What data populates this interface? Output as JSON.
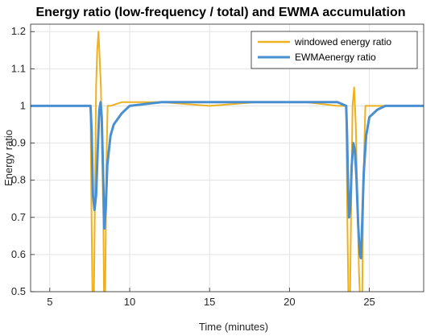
{
  "chart_data": {
    "type": "line",
    "title": "Energy ratio (low-frequency / total) and EWMA accumulation",
    "xlabel": "Time (minutes)",
    "ylabel": "Energy ratio",
    "xlim": [
      3.8,
      28.4
    ],
    "ylim": [
      0.5,
      1.22
    ],
    "xticks": [
      5,
      10,
      15,
      20,
      25
    ],
    "yticks": [
      0.5,
      0.6,
      0.7,
      0.8,
      0.9,
      1,
      1.1,
      1.2
    ],
    "grid": true,
    "legend_position": "top-right",
    "series": [
      {
        "name": "windowed energy ratio",
        "color": "#EDB120",
        "x": [
          3.8,
          7.0,
          7.4,
          7.55,
          7.6,
          7.68,
          7.75,
          7.83,
          7.9,
          7.97,
          8.05,
          8.2,
          8.35,
          8.4,
          8.46,
          8.55,
          8.62,
          8.8,
          9.5,
          12,
          15,
          18,
          21,
          23.0,
          23.4,
          23.55,
          23.62,
          23.7,
          23.78,
          23.87,
          23.95,
          24.05,
          24.15,
          24.25,
          24.35,
          24.45,
          24.55,
          24.62,
          24.75,
          25.0,
          26.5,
          28.4
        ],
        "y": [
          1.0,
          1.0,
          1.0,
          1.0,
          0.75,
          0.45,
          0.45,
          0.75,
          1.05,
          1.15,
          1.2,
          1.05,
          0.7,
          0.45,
          0.45,
          0.85,
          1.0,
          1.0,
          1.01,
          1.01,
          1.0,
          1.01,
          1.01,
          1.0,
          1.0,
          1.0,
          0.7,
          0.45,
          0.45,
          0.75,
          1.0,
          1.05,
          0.95,
          0.75,
          0.55,
          0.45,
          0.45,
          0.78,
          1.0,
          1.0,
          1.0,
          1.0
        ]
      },
      {
        "name": "EWMAenergy ratio",
        "color": "#4A8FCF",
        "x": [
          3.8,
          7.0,
          7.55,
          7.62,
          7.7,
          7.8,
          7.9,
          8.0,
          8.1,
          8.18,
          8.25,
          8.33,
          8.42,
          8.5,
          8.6,
          8.8,
          9.0,
          9.5,
          10,
          12,
          15,
          18,
          21,
          23.0,
          23.55,
          23.6,
          23.67,
          23.73,
          23.8,
          23.9,
          24.0,
          24.1,
          24.2,
          24.3,
          24.4,
          24.48,
          24.55,
          24.65,
          24.8,
          25.0,
          25.5,
          26,
          28.4
        ],
        "y": [
          1.0,
          1.0,
          1.0,
          0.93,
          0.76,
          0.72,
          0.76,
          0.88,
          0.99,
          1.01,
          0.97,
          0.83,
          0.67,
          0.72,
          0.84,
          0.92,
          0.95,
          0.98,
          1.0,
          1.01,
          1.01,
          1.01,
          1.01,
          1.01,
          1.0,
          0.93,
          0.78,
          0.7,
          0.72,
          0.84,
          0.9,
          0.88,
          0.8,
          0.68,
          0.6,
          0.59,
          0.68,
          0.82,
          0.92,
          0.97,
          0.99,
          1.0,
          1.0
        ]
      }
    ]
  }
}
